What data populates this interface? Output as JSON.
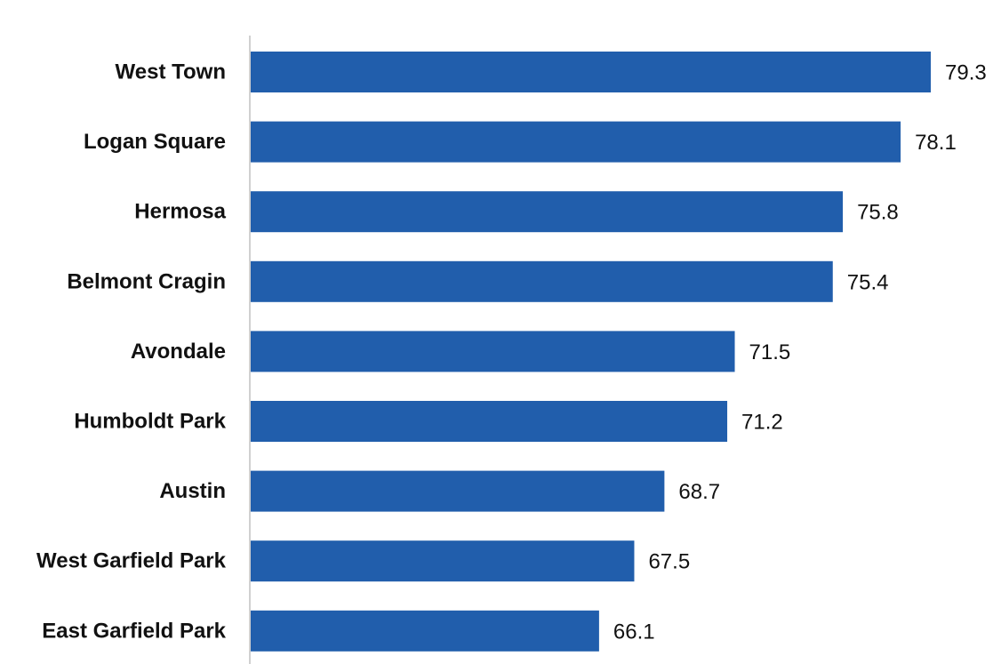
{
  "chart_data": {
    "type": "bar",
    "orientation": "horizontal",
    "categories": [
      "West Town",
      "Logan Square",
      "Hermosa",
      "Belmont Cragin",
      "Avondale",
      "Humboldt Park",
      "Austin",
      "West Garfield Park",
      "East Garfield Park"
    ],
    "values": [
      79.3,
      78.1,
      75.8,
      75.4,
      71.5,
      71.2,
      68.7,
      67.5,
      66.1
    ],
    "data_labels": [
      "79.3",
      "78.1",
      "75.8",
      "75.4",
      "71.5",
      "71.2",
      "68.7",
      "67.5",
      "66.1"
    ],
    "title": "",
    "xlabel": "",
    "ylabel": "",
    "xlim": [
      52.2,
      79.3
    ],
    "grid": false,
    "legend": "none",
    "colors": {
      "bar": "#215EAC",
      "axis": "#D0D0D0",
      "text": "#111111"
    }
  }
}
